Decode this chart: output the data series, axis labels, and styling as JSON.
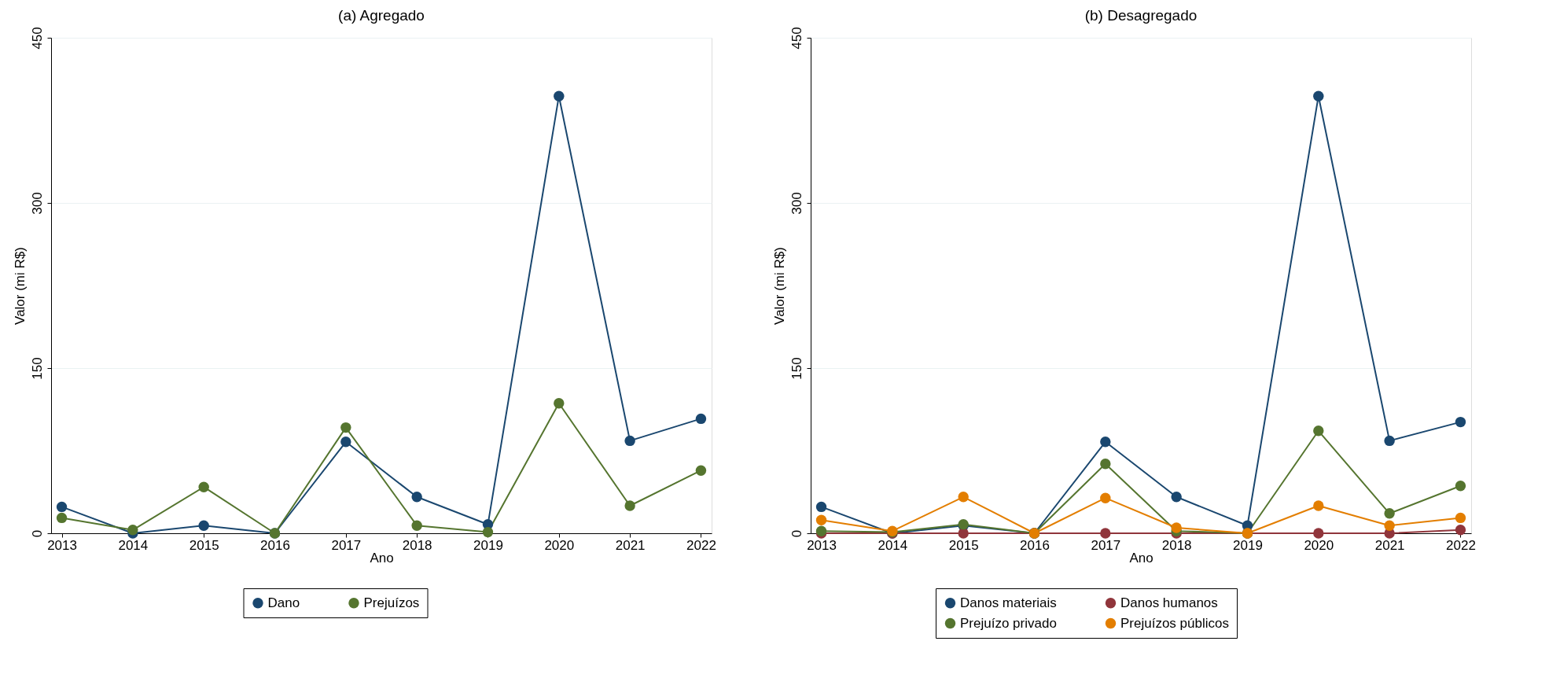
{
  "chart_data": [
    {
      "type": "line",
      "title": "(a) Agregado",
      "xlabel": "Ano",
      "ylabel": "Valor (mi R$)",
      "categories": [
        "2013",
        "2014",
        "2015",
        "2016",
        "2017",
        "2018",
        "2019",
        "2020",
        "2021",
        "2022"
      ],
      "ylim": [
        0,
        450
      ],
      "yticks": [
        0,
        150,
        300,
        450
      ],
      "grid": "y",
      "legend": "bottom",
      "marker": "circle",
      "line_style": "solid",
      "series": [
        {
          "name": "Dano",
          "color": "#1a476f",
          "values": [
            24,
            0,
            7,
            0,
            83,
            33,
            8,
            397,
            84,
            104
          ]
        },
        {
          "name": "Prejuízos",
          "color": "#55752f",
          "values": [
            14,
            3,
            42,
            0,
            96,
            7,
            1,
            118,
            25,
            57
          ]
        }
      ]
    },
    {
      "type": "line",
      "title": "(b) Desagregado",
      "xlabel": "Ano",
      "ylabel": "Valor (mi R$)",
      "categories": [
        "2013",
        "2014",
        "2015",
        "2016",
        "2017",
        "2018",
        "2019",
        "2020",
        "2021",
        "2022"
      ],
      "ylim": [
        0,
        450
      ],
      "yticks": [
        0,
        150,
        300,
        450
      ],
      "grid": "y",
      "legend": "bottom",
      "marker": "circle",
      "line_style": "solid",
      "series": [
        {
          "name": "Danos materiais",
          "color": "#1a476f",
          "values": [
            24,
            0,
            7,
            0,
            83,
            33,
            7,
            397,
            84,
            101
          ]
        },
        {
          "name": "Danos humanos",
          "color": "#90353b",
          "values": [
            0,
            0,
            0,
            0,
            0,
            0,
            0,
            0,
            0,
            3
          ]
        },
        {
          "name": "Prejuízo privado",
          "color": "#55752f",
          "values": [
            2,
            1,
            8,
            0,
            63,
            2,
            0,
            93,
            18,
            43
          ]
        },
        {
          "name": "Prejuízos públicos",
          "color": "#e37e00",
          "values": [
            12,
            2,
            33,
            0,
            32,
            5,
            0,
            25,
            7,
            14
          ]
        }
      ]
    }
  ]
}
